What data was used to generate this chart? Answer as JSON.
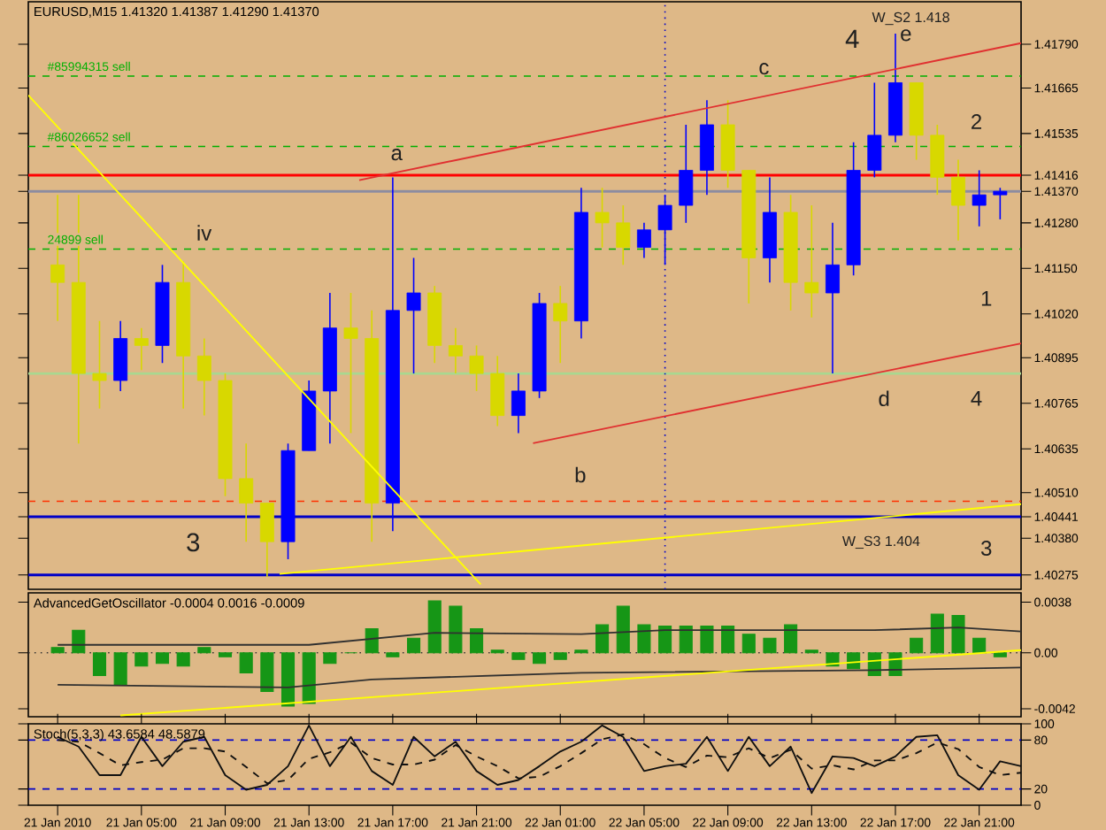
{
  "chart_data": [
    {
      "type": "candlestick",
      "title": "EURUSD,M15  1.41320 1.41387 1.41290 1.41370",
      "x": [
        "2010-01-21T01:00",
        "2010-01-21T02:00",
        "2010-01-21T03:00",
        "2010-01-21T04:00",
        "2010-01-21T05:00",
        "2010-01-21T06:00",
        "2010-01-21T07:00",
        "2010-01-21T08:00",
        "2010-01-21T09:00",
        "2010-01-21T10:00",
        "2010-01-21T11:00",
        "2010-01-21T12:00",
        "2010-01-21T13:00",
        "2010-01-21T14:00",
        "2010-01-21T15:00",
        "2010-01-21T16:00",
        "2010-01-21T17:00",
        "2010-01-21T18:00",
        "2010-01-21T19:00",
        "2010-01-21T20:00",
        "2010-01-21T21:00",
        "2010-01-21T22:00",
        "2010-01-21T23:00",
        "2010-01-22T00:00",
        "2010-01-22T01:00",
        "2010-01-22T02:00",
        "2010-01-22T03:00",
        "2010-01-22T04:00",
        "2010-01-22T05:00",
        "2010-01-22T06:00",
        "2010-01-22T07:00",
        "2010-01-22T08:00",
        "2010-01-22T09:00",
        "2010-01-22T10:00",
        "2010-01-22T11:00",
        "2010-01-22T12:00",
        "2010-01-22T13:00",
        "2010-01-22T14:00",
        "2010-01-22T15:00",
        "2010-01-22T16:00",
        "2010-01-22T17:00",
        "2010-01-22T18:00",
        "2010-01-22T19:00",
        "2010-01-22T20:00",
        "2010-01-22T21:00",
        "2010-01-22T22:00"
      ],
      "ohlc": [
        [
          1.4116,
          1.4136,
          1.41,
          1.4111
        ],
        [
          1.4111,
          1.4136,
          1.4065,
          1.4085
        ],
        [
          1.4085,
          1.41,
          1.4075,
          1.4083
        ],
        [
          1.4083,
          1.41,
          1.408,
          1.4095
        ],
        [
          1.4095,
          1.4098,
          1.4086,
          1.4093
        ],
        [
          1.4093,
          1.4116,
          1.4088,
          1.4111
        ],
        [
          1.4111,
          1.4117,
          1.4075,
          1.409
        ],
        [
          1.409,
          1.4095,
          1.4073,
          1.4083
        ],
        [
          1.4083,
          1.4085,
          1.405,
          1.4055
        ],
        [
          1.4055,
          1.4065,
          1.4037,
          1.4048
        ],
        [
          1.4048,
          1.4048,
          1.4027,
          1.4037
        ],
        [
          1.4037,
          1.4065,
          1.4032,
          1.4063
        ],
        [
          1.4063,
          1.4083,
          1.4063,
          1.408
        ],
        [
          1.408,
          1.4108,
          1.4065,
          1.4098
        ],
        [
          1.4098,
          1.4108,
          1.4068,
          1.4095
        ],
        [
          1.4095,
          1.4103,
          1.4037,
          1.4048
        ],
        [
          1.4048,
          1.4141,
          1.404,
          1.4103
        ],
        [
          1.4103,
          1.4118,
          1.4085,
          1.4108
        ],
        [
          1.4108,
          1.411,
          1.4088,
          1.4093
        ],
        [
          1.4093,
          1.4098,
          1.4085,
          1.409
        ],
        [
          1.409,
          1.4093,
          1.408,
          1.4085
        ],
        [
          1.4085,
          1.409,
          1.407,
          1.4073
        ],
        [
          1.4073,
          1.4085,
          1.4068,
          1.408
        ],
        [
          1.408,
          1.4108,
          1.4078,
          1.4105
        ],
        [
          1.4105,
          1.411,
          1.4088,
          1.41
        ],
        [
          1.41,
          1.4138,
          1.4095,
          1.4131
        ],
        [
          1.4131,
          1.4138,
          1.4121,
          1.4128
        ],
        [
          1.4128,
          1.4133,
          1.4116,
          1.4121
        ],
        [
          1.4121,
          1.4128,
          1.4118,
          1.4126
        ],
        [
          1.4126,
          1.4136,
          1.4116,
          1.4133
        ],
        [
          1.4133,
          1.4156,
          1.4128,
          1.4143
        ],
        [
          1.4143,
          1.4163,
          1.4136,
          1.4156
        ],
        [
          1.4156,
          1.4163,
          1.4138,
          1.4143
        ],
        [
          1.4143,
          1.4143,
          1.4105,
          1.4118
        ],
        [
          1.4118,
          1.4141,
          1.4111,
          1.4131
        ],
        [
          1.4131,
          1.4136,
          1.4103,
          1.4111
        ],
        [
          1.4111,
          1.4133,
          1.4101,
          1.4108
        ],
        [
          1.4108,
          1.4128,
          1.4085,
          1.4116
        ],
        [
          1.4116,
          1.4151,
          1.4113,
          1.4143
        ],
        [
          1.4143,
          1.4168,
          1.4141,
          1.4153
        ],
        [
          1.4153,
          1.4182,
          1.4151,
          1.4168
        ],
        [
          1.4168,
          1.4168,
          1.4146,
          1.4153
        ],
        [
          1.4153,
          1.4156,
          1.4136,
          1.4141
        ],
        [
          1.4141,
          1.4146,
          1.4123,
          1.4133
        ],
        [
          1.4133,
          1.4143,
          1.4127,
          1.4136
        ],
        [
          1.4136,
          1.4138,
          1.4129,
          1.4137
        ]
      ],
      "colors": [
        "#d8d800",
        "#d8d800",
        "#d8d800",
        "#0000ff",
        "#d8d800",
        "#0000ff",
        "#d8d800",
        "#d8d800",
        "#d8d800",
        "#d8d800",
        "#d8d800",
        "#0000ff",
        "#0000ff",
        "#0000ff",
        "#d8d800",
        "#d8d800",
        "#0000ff",
        "#0000ff",
        "#d8d800",
        "#d8d800",
        "#d8d800",
        "#d8d800",
        "#0000ff",
        "#0000ff",
        "#d8d800",
        "#0000ff",
        "#d8d800",
        "#d8d800",
        "#0000ff",
        "#0000ff",
        "#0000ff",
        "#0000ff",
        "#d8d800",
        "#d8d800",
        "#0000ff",
        "#d8d800",
        "#d8d800",
        "#0000ff",
        "#0000ff",
        "#0000ff",
        "#0000ff",
        "#d8d800",
        "#d8d800",
        "#d8d800",
        "#0000ff",
        "#0000ff"
      ],
      "xlim": [
        "2010-01-20T23:36",
        "2010-01-22T23:00"
      ],
      "ylim": [
        1.40234,
        1.41911
      ],
      "tick_labels": "y",
      "yticks": [
        {
          "value": 1.4179,
          "label": "1.41790"
        },
        1.41665,
        1.41535,
        1.41416,
        {
          "value": 1.4137,
          "label": "1.41370"
        },
        {
          "value": 1.4128,
          "label": "1.41280"
        },
        {
          "value": 1.4115,
          "label": "1.41150"
        },
        {
          "value": 1.4102,
          "label": "1.41020"
        },
        1.40895,
        1.40765,
        1.40635,
        {
          "value": 1.4051,
          "label": "1.40510"
        },
        1.40441,
        {
          "value": 1.4038,
          "label": "1.40380"
        },
        1.40275
      ],
      "series": [
        {
          "type": "line",
          "color": "#e03030",
          "x": [
            "2010-01-21T15:24",
            "2010-01-22T23:00"
          ],
          "values": [
            1.41402,
            1.41793
          ]
        },
        {
          "type": "line",
          "color": "#e03030",
          "x": [
            "2010-01-21T23:42",
            "2010-01-22T23:00"
          ],
          "values": [
            1.40651,
            1.40936
          ]
        },
        {
          "type": "line",
          "color": "#ffff00",
          "x": [
            "2010-01-20T23:36",
            "2010-01-21T21:12"
          ],
          "values": [
            1.41644,
            1.40248
          ]
        },
        {
          "type": "line",
          "color": "#ffff00",
          "x": [
            "2010-01-21T11:36",
            "2010-01-22T23:00"
          ],
          "values": [
            1.40278,
            1.40477
          ]
        }
      ],
      "ref_lines": [
        {
          "axis": "y",
          "value": 1.41699,
          "label": "#85994315 sell",
          "color": "#00b000",
          "line_style": "dashed"
        },
        {
          "axis": "y",
          "value": 1.41498,
          "label": "#86026652 sell",
          "color": "#00b000",
          "line_style": "dashed"
        },
        {
          "axis": "y",
          "value": 1.41205,
          "label": "24899 sell",
          "color": "#00b000",
          "line_style": "dashed"
        },
        {
          "axis": "y",
          "value": 1.41416,
          "color": "#ff0000",
          "line_style": "solid"
        },
        {
          "axis": "y",
          "value": 1.4137,
          "color": "#8c8ca0",
          "line_style": "solid"
        },
        {
          "axis": "y",
          "value": 1.4085,
          "color": "#a8d890",
          "line_style": "solid"
        },
        {
          "axis": "y",
          "value": 1.40485,
          "color": "#ff3000",
          "line_style": "dashed"
        },
        {
          "axis": "y",
          "value": 1.40441,
          "color": "#0000c8",
          "line_style": "solid"
        },
        {
          "axis": "y",
          "value": 1.40275,
          "color": "#0000c8",
          "line_style": "solid"
        },
        {
          "axis": "x",
          "value": "2010-01-22T06:00",
          "color": "#0000c8",
          "line_style": "dotted"
        }
      ],
      "annotations": [
        "a",
        "b",
        "c",
        "d",
        "e",
        "4",
        "iv",
        "3",
        "2",
        "1",
        "4",
        "3",
        "W_S2 1.418",
        "W_S3 1.404"
      ]
    },
    {
      "type": "bar",
      "title": "AdvancedGetOscillator -0.0004 0.0016 -0.0009",
      "x": [
        "2010-01-21T01:00",
        "2010-01-21T02:00",
        "2010-01-21T03:00",
        "2010-01-21T04:00",
        "2010-01-21T05:00",
        "2010-01-21T06:00",
        "2010-01-21T07:00",
        "2010-01-21T08:00",
        "2010-01-21T09:00",
        "2010-01-21T10:00",
        "2010-01-21T11:00",
        "2010-01-21T12:00",
        "2010-01-21T13:00",
        "2010-01-21T14:00",
        "2010-01-21T15:00",
        "2010-01-21T16:00",
        "2010-01-21T17:00",
        "2010-01-21T18:00",
        "2010-01-21T19:00",
        "2010-01-21T20:00",
        "2010-01-21T21:00",
        "2010-01-21T22:00",
        "2010-01-21T23:00",
        "2010-01-22T00:00",
        "2010-01-22T01:00",
        "2010-01-22T02:00",
        "2010-01-22T03:00",
        "2010-01-22T04:00",
        "2010-01-22T05:00",
        "2010-01-22T06:00",
        "2010-01-22T07:00",
        "2010-01-22T08:00",
        "2010-01-22T09:00",
        "2010-01-22T10:00",
        "2010-01-22T11:00",
        "2010-01-22T12:00",
        "2010-01-22T13:00",
        "2010-01-22T14:00",
        "2010-01-22T15:00",
        "2010-01-22T16:00",
        "2010-01-22T17:00",
        "2010-01-22T18:00",
        "2010-01-22T19:00",
        "2010-01-22T20:00",
        "2010-01-22T21:00",
        "2010-01-22T22:00"
      ],
      "xlim": [
        "2010-01-20T23:36",
        "2010-01-22T23:00"
      ],
      "ylim": [
        -0.0048,
        0.0045
      ],
      "tick_labels": "y",
      "yticks": [
        0.0038,
        {
          "value": 0,
          "label": "0.00"
        },
        -0.0042
      ],
      "series": [
        {
          "color": "#169616",
          "values": [
            0.0004,
            0.0017,
            -0.0017,
            -0.0024,
            -0.001,
            -0.0008,
            -0.001,
            0.0004,
            -0.0003,
            -0.0015,
            -0.0029,
            -0.004,
            -0.0038,
            -0.0008,
            0,
            0.0018,
            -0.0003,
            0.0011,
            0.0039,
            0.0035,
            0.0018,
            0.0002,
            -0.0005,
            -0.0008,
            -0.0005,
            0.0002,
            0.0021,
            0.0035,
            0.0021,
            0.002,
            0.002,
            0.002,
            0.002,
            0.0014,
            0.0011,
            0.0021,
            0.0002,
            -0.001,
            -0.0012,
            -0.0017,
            -0.0017,
            0.0011,
            0.0029,
            0.0028,
            0.0011,
            -0.0003
          ]
        },
        {
          "type": "line",
          "color": "#303030",
          "x": [
            "2010-01-21T01:00",
            "2010-01-21T13:00",
            "2010-01-21T19:00",
            "2010-01-22T02:00",
            "2010-01-22T06:00",
            "2010-01-22T16:00",
            "2010-01-22T20:00",
            "2010-01-22T23:00"
          ],
          "values": [
            0.0006,
            0.0006,
            0.0015,
            0.0014,
            0.0017,
            0.0017,
            0.0019,
            0.0016
          ]
        },
        {
          "type": "line",
          "color": "#303030",
          "x": [
            "2010-01-21T01:00",
            "2010-01-21T12:00",
            "2010-01-21T16:00",
            "2010-01-22T02:00",
            "2010-01-22T16:00",
            "2010-01-22T23:00"
          ],
          "values": [
            -0.0024,
            -0.0026,
            -0.002,
            -0.0015,
            -0.0013,
            -0.0011
          ]
        },
        {
          "type": "line",
          "color": "#ffff00",
          "x": [
            "2010-01-21T04:00",
            "2010-01-22T23:00"
          ],
          "values": [
            -0.0047,
            0.0002
          ]
        }
      ],
      "ref_lines": [
        {
          "axis": "y",
          "value": 0,
          "color": "#303030",
          "line_style": "dotted"
        }
      ]
    },
    {
      "type": "line",
      "title": "Stoch(5,3,3) 43.6584 48.5879",
      "x": [
        "2010-01-21T01:00",
        "2010-01-21T02:00",
        "2010-01-21T03:00",
        "2010-01-21T04:00",
        "2010-01-21T05:00",
        "2010-01-21T06:00",
        "2010-01-21T07:00",
        "2010-01-21T08:00",
        "2010-01-21T09:00",
        "2010-01-21T10:00",
        "2010-01-21T11:00",
        "2010-01-21T12:00",
        "2010-01-21T13:00",
        "2010-01-21T14:00",
        "2010-01-21T15:00",
        "2010-01-21T16:00",
        "2010-01-21T17:00",
        "2010-01-21T18:00",
        "2010-01-21T19:00",
        "2010-01-21T20:00",
        "2010-01-21T21:00",
        "2010-01-21T22:00",
        "2010-01-21T23:00",
        "2010-01-22T00:00",
        "2010-01-22T01:00",
        "2010-01-22T02:00",
        "2010-01-22T03:00",
        "2010-01-22T04:00",
        "2010-01-22T05:00",
        "2010-01-22T06:00",
        "2010-01-22T07:00",
        "2010-01-22T08:00",
        "2010-01-22T09:00",
        "2010-01-22T10:00",
        "2010-01-22T11:00",
        "2010-01-22T12:00",
        "2010-01-22T13:00",
        "2010-01-22T14:00",
        "2010-01-22T15:00",
        "2010-01-22T16:00",
        "2010-01-22T17:00",
        "2010-01-22T18:00",
        "2010-01-22T19:00",
        "2010-01-22T20:00",
        "2010-01-22T21:00",
        "2010-01-22T22:00",
        "2010-01-22T23:00"
      ],
      "xlim": [
        "2010-01-20T23:36",
        "2010-01-22T23:00"
      ],
      "ylim": [
        0,
        100
      ],
      "yticks": [
        0,
        20,
        80,
        100
      ],
      "xticks": [
        {
          "value": "2010-01-21T01:00",
          "label": "21 Jan 2010"
        },
        {
          "value": "2010-01-21T05:00",
          "label": "21 Jan 05:00"
        },
        {
          "value": "2010-01-21T09:00",
          "label": "21 Jan 09:00"
        },
        {
          "value": "2010-01-21T13:00",
          "label": "21 Jan 13:00"
        },
        {
          "value": "2010-01-21T17:00",
          "label": "21 Jan 17:00"
        },
        {
          "value": "2010-01-21T21:00",
          "label": "21 Jan 21:00"
        },
        {
          "value": "2010-01-22T01:00",
          "label": "22 Jan 01:00"
        },
        {
          "value": "2010-01-22T05:00",
          "label": "22 Jan 05:00"
        },
        {
          "value": "2010-01-22T09:00",
          "label": "22 Jan 09:00"
        },
        {
          "value": "2010-01-22T13:00",
          "label": "22 Jan 13:00"
        },
        {
          "value": "2010-01-22T17:00",
          "label": "22 Jan 17:00"
        },
        {
          "value": "2010-01-22T21:00",
          "label": "22 Jan 21:00"
        }
      ],
      "series": [
        {
          "color": "#101010",
          "line_style": "solid",
          "values": [
            84,
            72,
            37,
            37,
            84,
            48,
            78,
            84,
            37,
            19,
            25,
            48,
            98,
            48,
            84,
            42,
            25,
            84,
            60,
            78,
            42,
            25,
            31,
            48,
            66,
            78,
            98,
            84,
            42,
            48,
            51,
            84,
            42,
            84,
            48,
            72,
            15,
            60,
            58,
            48,
            60,
            84,
            86,
            37,
            19,
            54,
            48
          ]
        },
        {
          "color": "#101010",
          "line_style": "dashed",
          "values": [
            80,
            78,
            64,
            49,
            53,
            56,
            70,
            70,
            66,
            47,
            27,
            31,
            57,
            65,
            77,
            58,
            50,
            50,
            56,
            74,
            60,
            48,
            33,
            35,
            48,
            64,
            81,
            87,
            75,
            58,
            47,
            61,
            59,
            70,
            58,
            68,
            45,
            49,
            44,
            55,
            55,
            64,
            77,
            69,
            47,
            37,
            40
          ]
        }
      ],
      "ref_lines": [
        {
          "axis": "y",
          "value": 20,
          "color": "#0000c8",
          "line_style": "dashed"
        },
        {
          "axis": "y",
          "value": 80,
          "color": "#0000c8",
          "line_style": "dashed"
        }
      ]
    }
  ]
}
